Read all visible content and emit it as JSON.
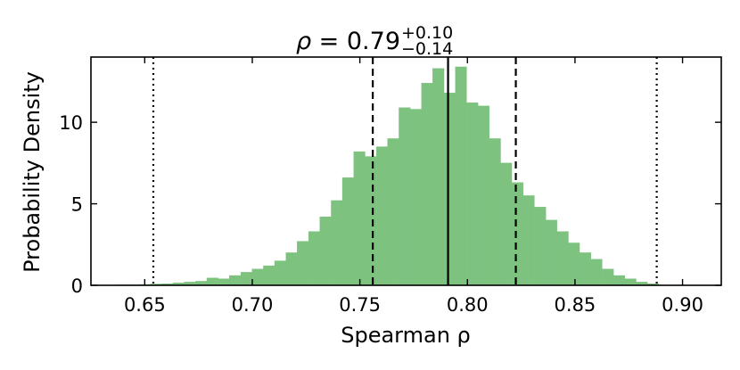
{
  "chart_data": {
    "type": "bar",
    "subtype": "histogram",
    "title": {
      "symbol": "ρ",
      "equals": " = ",
      "value": "0.79",
      "upper": "+0.10",
      "lower": "−0.14"
    },
    "xlabel": "Spearman ρ",
    "ylabel": "Probability Density",
    "xlim": [
      0.625,
      0.918
    ],
    "ylim": [
      0,
      14.0
    ],
    "xticks": [
      0.65,
      0.7,
      0.75,
      0.8,
      0.85,
      0.9
    ],
    "xtick_labels": [
      "0.65",
      "0.70",
      "0.75",
      "0.80",
      "0.85",
      "0.90"
    ],
    "yticks": [
      0,
      5,
      10
    ],
    "ytick_labels": [
      "0",
      "5",
      "10"
    ],
    "bar_color": "#7dc27f",
    "bin_width": 0.00525,
    "bin_centers": [
      0.6395,
      0.6448,
      0.65,
      0.6553,
      0.6605,
      0.6658,
      0.671,
      0.6763,
      0.6815,
      0.6868,
      0.692,
      0.6973,
      0.7025,
      0.7078,
      0.713,
      0.7183,
      0.7235,
      0.7288,
      0.734,
      0.7393,
      0.7445,
      0.7498,
      0.755,
      0.7603,
      0.7655,
      0.7708,
      0.776,
      0.7813,
      0.7865,
      0.7918,
      0.797,
      0.8023,
      0.8075,
      0.8128,
      0.818,
      0.8233,
      0.8285,
      0.8338,
      0.839,
      0.8443,
      0.8495,
      0.8548,
      0.86,
      0.8653,
      0.8705,
      0.8758,
      0.881,
      0.8863
    ],
    "densities": [
      0.03,
      0.03,
      0.05,
      0.08,
      0.1,
      0.15,
      0.2,
      0.25,
      0.45,
      0.4,
      0.6,
      0.8,
      1.0,
      1.2,
      1.5,
      2.0,
      2.7,
      3.3,
      4.2,
      5.2,
      6.6,
      8.2,
      7.9,
      8.5,
      9.0,
      10.9,
      10.8,
      12.4,
      13.3,
      11.8,
      13.4,
      11.2,
      11.0,
      9.0,
      7.5,
      6.3,
      5.5,
      4.8,
      4.0,
      3.3,
      2.6,
      2.0,
      1.6,
      1.0,
      0.6,
      0.4,
      0.2,
      0.1
    ],
    "vertical_lines": [
      {
        "x": 0.654,
        "style": "dotted"
      },
      {
        "x": 0.756,
        "style": "dashed"
      },
      {
        "x": 0.791,
        "style": "solid"
      },
      {
        "x": 0.8225,
        "style": "dashed"
      },
      {
        "x": 0.888,
        "style": "dotted"
      }
    ],
    "grid": false,
    "legend": "none"
  }
}
